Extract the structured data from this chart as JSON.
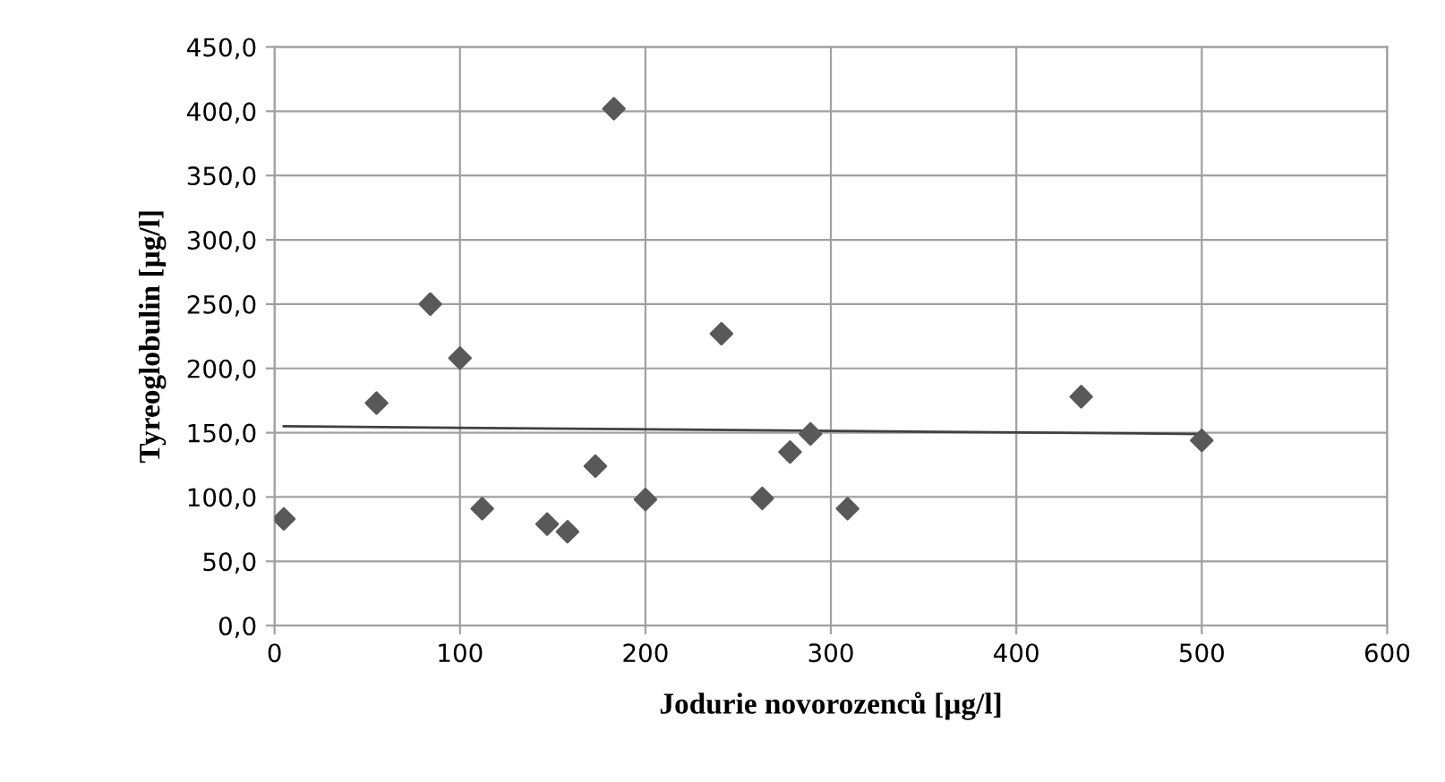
{
  "chart_data": {
    "type": "scatter",
    "xlabel": "Jodurie novorozenců [µg/l]",
    "ylabel": "Tyreoglobulin [µg/l]",
    "xlim": [
      0,
      600
    ],
    "xticks": [
      0,
      100,
      200,
      300,
      400,
      500,
      600
    ],
    "ylim": [
      0,
      450
    ],
    "yticks": [
      {
        "value": 0,
        "label": "0,0"
      },
      {
        "value": 50,
        "label": "50,0"
      },
      {
        "value": 100,
        "label": "100,0"
      },
      {
        "value": 150,
        "label": "150,0"
      },
      {
        "value": 200,
        "label": "200,0"
      },
      {
        "value": 250,
        "label": "250,0"
      },
      {
        "value": 300,
        "label": "300,0"
      },
      {
        "value": 350,
        "label": "350,0"
      },
      {
        "value": 400,
        "label": "400,0"
      },
      {
        "value": 450,
        "label": "450,0"
      }
    ],
    "grid": true,
    "series": [
      {
        "marker": "diamond",
        "color": "#595959",
        "x": [
          5,
          55,
          84,
          100,
          112,
          147,
          158,
          173,
          183,
          200,
          241,
          263,
          278,
          289,
          309,
          435,
          500
        ],
        "values": [
          83,
          173,
          250,
          208,
          91,
          79,
          73,
          124,
          402,
          98,
          227,
          99,
          135,
          149,
          91,
          178,
          144
        ]
      },
      {
        "type": "line",
        "marker": "none",
        "color": "#404040",
        "x": [
          5,
          500
        ],
        "values": [
          155,
          149
        ]
      }
    ]
  }
}
